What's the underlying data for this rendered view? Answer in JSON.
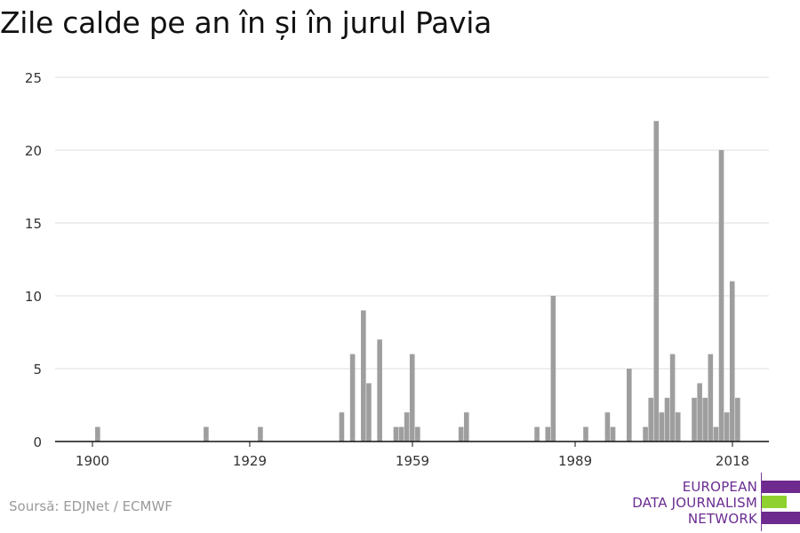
{
  "title": "Zile calde pe an în și în jurul Pavia",
  "source": "Soursă: EDJNet / ECMWF",
  "logo": {
    "line1": "EUROPEAN",
    "line2": "DATA JOURNALISM",
    "line3": "NETWORK",
    "colors": {
      "purple": "#6e2a8e",
      "green": "#8fd12f"
    }
  },
  "chart_data": {
    "type": "bar",
    "x_tick_labels": [
      "1900",
      "1929",
      "1959",
      "1989",
      "2018"
    ],
    "x_ticks": [
      1900,
      1929,
      1959,
      1989,
      2018
    ],
    "y_ticks": [
      0,
      5,
      10,
      15,
      20,
      25
    ],
    "ylim": [
      0,
      25
    ],
    "xlim": [
      1899,
      2021
    ],
    "grid": true,
    "bar_color": "#9e9e9e",
    "years": [
      1900,
      1901,
      1902,
      1903,
      1904,
      1905,
      1906,
      1907,
      1908,
      1909,
      1910,
      1911,
      1912,
      1913,
      1914,
      1915,
      1916,
      1917,
      1918,
      1919,
      1920,
      1921,
      1922,
      1923,
      1924,
      1925,
      1926,
      1927,
      1928,
      1929,
      1930,
      1931,
      1932,
      1933,
      1934,
      1935,
      1936,
      1937,
      1938,
      1939,
      1940,
      1941,
      1942,
      1943,
      1944,
      1945,
      1946,
      1947,
      1948,
      1949,
      1950,
      1951,
      1952,
      1953,
      1954,
      1955,
      1956,
      1957,
      1958,
      1959,
      1960,
      1961,
      1962,
      1963,
      1964,
      1965,
      1966,
      1967,
      1968,
      1969,
      1970,
      1971,
      1972,
      1973,
      1974,
      1975,
      1976,
      1977,
      1978,
      1979,
      1980,
      1981,
      1982,
      1983,
      1984,
      1985,
      1986,
      1987,
      1988,
      1989,
      1990,
      1991,
      1992,
      1993,
      1994,
      1995,
      1996,
      1997,
      1998,
      1999,
      2000,
      2001,
      2002,
      2003,
      2004,
      2005,
      2006,
      2007,
      2008,
      2009,
      2010,
      2011,
      2012,
      2013,
      2014,
      2015,
      2016,
      2017,
      2018,
      2019
    ],
    "values": [
      0,
      1,
      0,
      0,
      0,
      0,
      0,
      0,
      0,
      0,
      0,
      0,
      0,
      0,
      0,
      0,
      0,
      0,
      0,
      0,
      0,
      1,
      0,
      0,
      0,
      0,
      0,
      0,
      0,
      0,
      0,
      1,
      0,
      0,
      0,
      0,
      0,
      0,
      0,
      0,
      0,
      0,
      0,
      0,
      0,
      0,
      2,
      0,
      6,
      0,
      9,
      4,
      0,
      7,
      0,
      0,
      1,
      1,
      2,
      6,
      1,
      0,
      0,
      0,
      0,
      0,
      0,
      0,
      1,
      2,
      0,
      0,
      0,
      0,
      0,
      0,
      0,
      0,
      0,
      0,
      0,
      0,
      1,
      0,
      1,
      10,
      0,
      0,
      0,
      0,
      0,
      1,
      0,
      0,
      0,
      2,
      1,
      0,
      0,
      5,
      0,
      0,
      1,
      3,
      22,
      2,
      3,
      6,
      2,
      0,
      0,
      3,
      4,
      3,
      6,
      1,
      20,
      2,
      11,
      3
    ]
  }
}
